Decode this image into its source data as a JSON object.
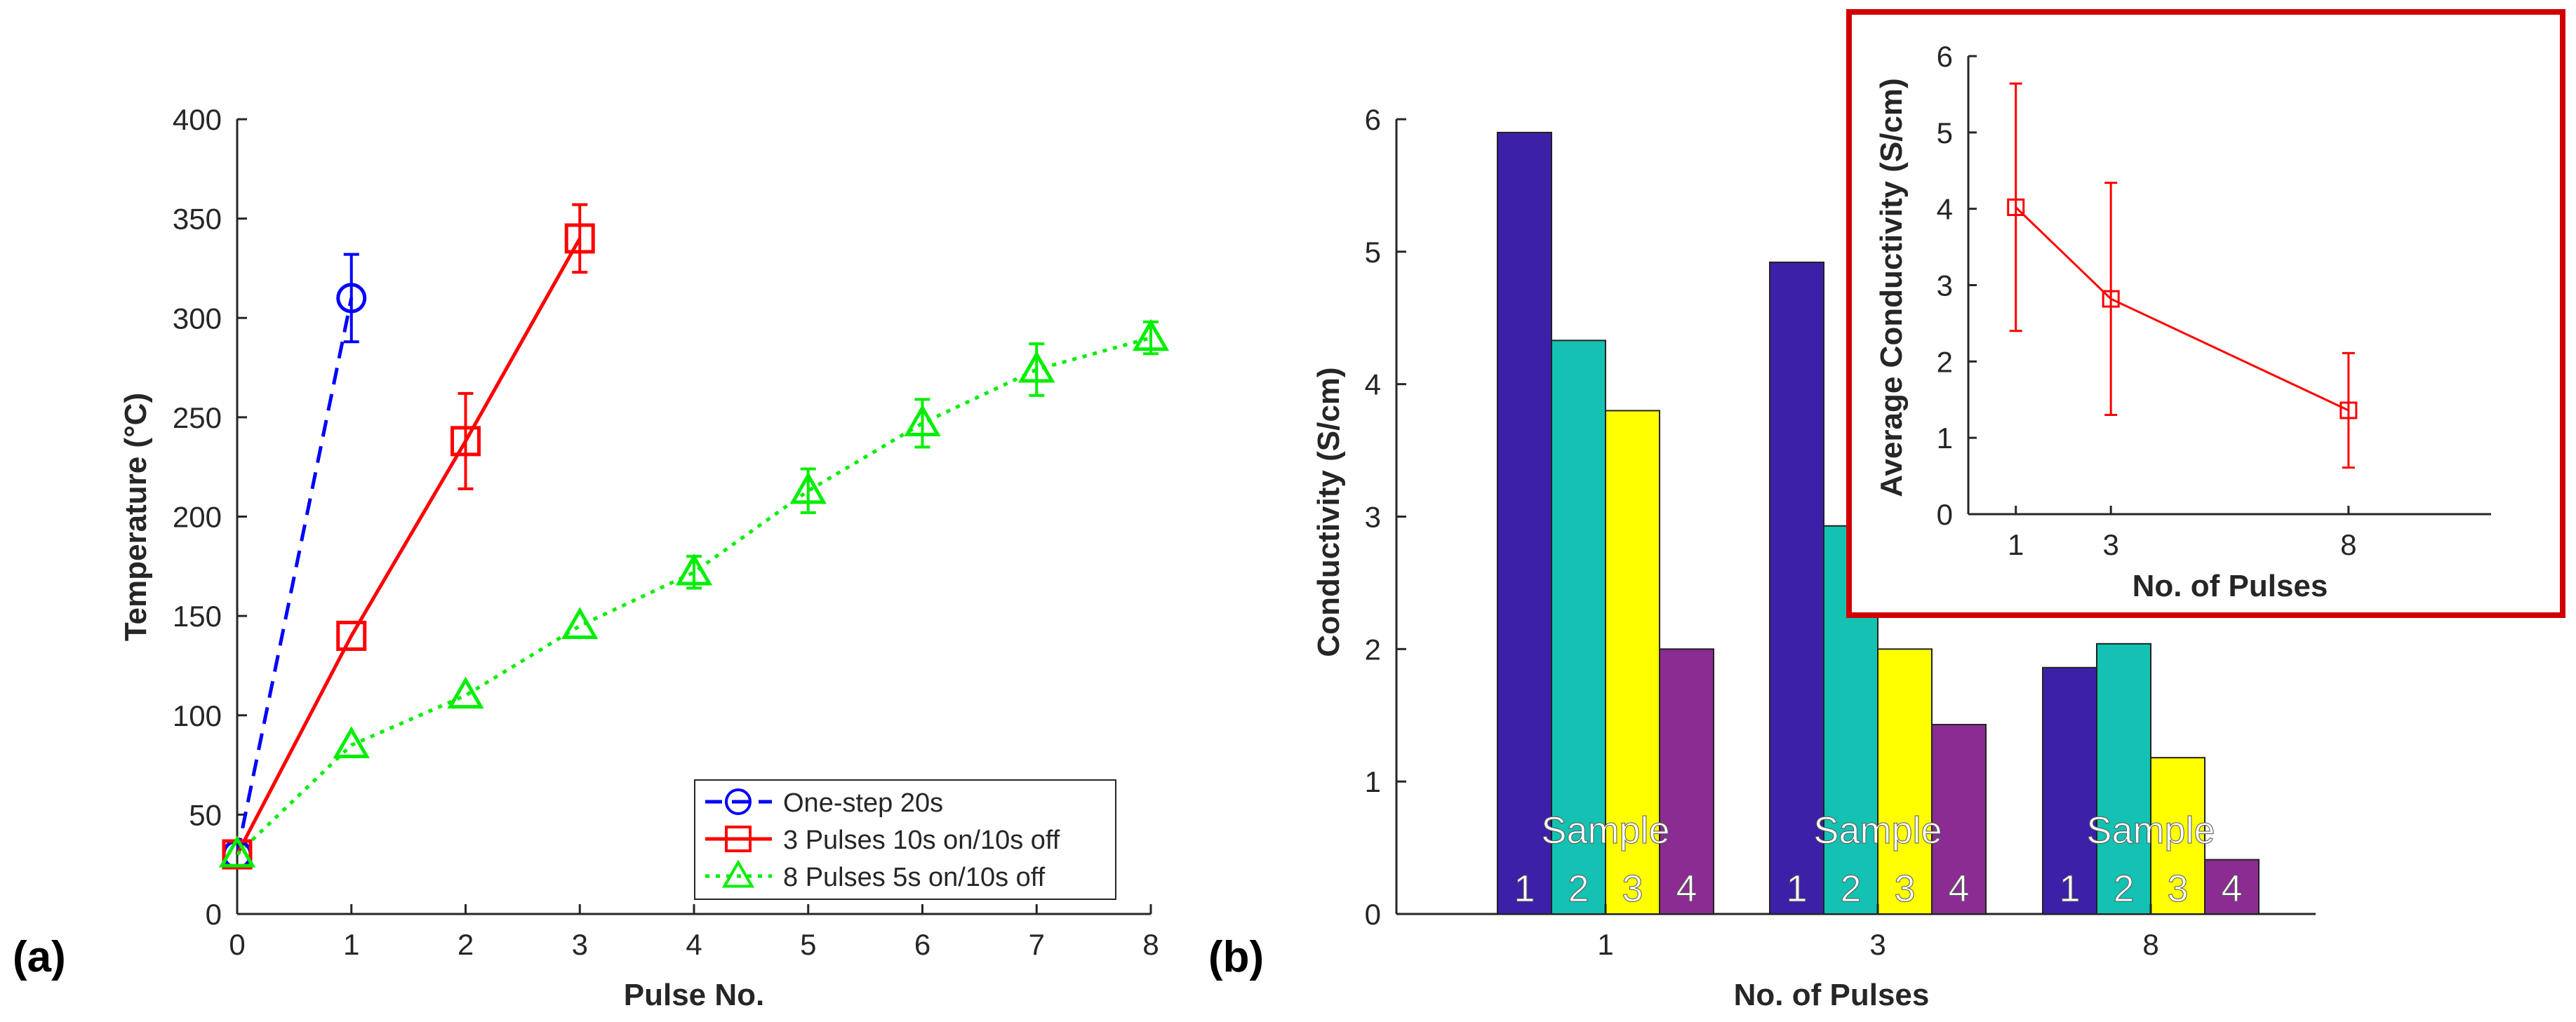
{
  "chart_data": [
    {
      "panel_label": "(a)",
      "type": "line",
      "xlabel": "Pulse No.",
      "ylabel": "Temperature (°C)",
      "xlim": [
        0,
        8
      ],
      "ylim": [
        0,
        400
      ],
      "xticks": [
        "0",
        "1",
        "2",
        "3",
        "4",
        "5",
        "6",
        "7",
        "8"
      ],
      "yticks": [
        "0",
        "50",
        "100",
        "150",
        "200",
        "250",
        "300",
        "350",
        "400"
      ],
      "legend_position": "bottom-right",
      "series": [
        {
          "name": "One-step 20s",
          "color": "#0000ff",
          "line_style": "dashed",
          "marker": "circle",
          "x": [
            0,
            1
          ],
          "y": [
            30,
            310
          ],
          "err": [
            0,
            22
          ]
        },
        {
          "name": "3 Pulses 10s on/10s off",
          "color": "#ff0000",
          "line_style": "solid",
          "marker": "square",
          "x": [
            0,
            1,
            2,
            3
          ],
          "y": [
            30,
            140,
            238,
            340
          ],
          "err": [
            0,
            0,
            24,
            17
          ]
        },
        {
          "name": "8 Pulses 5s on/10s off",
          "color": "#00ee00",
          "line_style": "dotted",
          "marker": "triangle",
          "x": [
            0,
            1,
            2,
            3,
            4,
            5,
            6,
            7,
            8
          ],
          "y": [
            30,
            85,
            110,
            145,
            172,
            213,
            247,
            274,
            290
          ],
          "err": [
            0,
            0,
            0,
            0,
            8,
            11,
            12,
            13,
            8
          ]
        }
      ]
    },
    {
      "panel_label": "(b)",
      "type": "bar",
      "xlabel": "No. of Pulses",
      "ylabel": "Conductivity (S/cm)",
      "categories": [
        "1",
        "3",
        "8"
      ],
      "ylim": [
        0,
        6
      ],
      "yticks": [
        "0",
        "1",
        "2",
        "3",
        "4",
        "5",
        "6"
      ],
      "sample_label": "Sample",
      "sample_numbers": [
        "1",
        "2",
        "3",
        "4"
      ],
      "series": [
        {
          "name": "1",
          "color": "#3c20a8",
          "values": [
            5.9,
            4.92,
            1.86
          ]
        },
        {
          "name": "2",
          "color": "#13c2b2",
          "values": [
            4.33,
            2.93,
            2.04
          ]
        },
        {
          "name": "3",
          "color": "#ffff00",
          "values": [
            3.8,
            2.0,
            1.18
          ]
        },
        {
          "name": "4",
          "color": "#8a2c92",
          "values": [
            2.0,
            1.43,
            0.41
          ]
        }
      ]
    },
    {
      "panel_label": "inset",
      "type": "line",
      "xlabel": "No. of Pulses",
      "ylabel": "Average Conductivity (S/cm)",
      "xlim": [
        0,
        11
      ],
      "ylim": [
        0,
        6
      ],
      "xticks": [
        "1",
        "3",
        "8"
      ],
      "yticks": [
        "0",
        "1",
        "2",
        "3",
        "4",
        "5",
        "6"
      ],
      "frame_color": "#d00000",
      "series": [
        {
          "name": "Average Conductivity",
          "color": "#ff0000",
          "marker": "square",
          "x": [
            1,
            3,
            8
          ],
          "y": [
            4.02,
            2.82,
            1.36
          ],
          "err": [
            1.62,
            1.52,
            0.75
          ]
        }
      ]
    }
  ]
}
